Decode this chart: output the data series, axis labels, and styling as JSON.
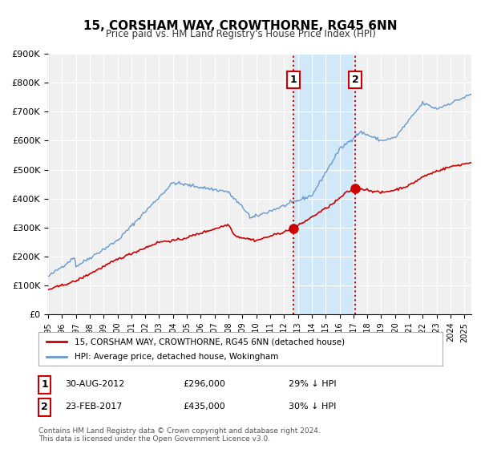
{
  "title": "15, CORSHAM WAY, CROWTHORNE, RG45 6NN",
  "subtitle": "Price paid vs. HM Land Registry's House Price Index (HPI)",
  "background_color": "#ffffff",
  "plot_bg_color": "#f0f0f0",
  "grid_color": "#ffffff",
  "x_start": 1995.0,
  "x_end": 2025.5,
  "y_min": 0,
  "y_max": 900000,
  "y_ticks": [
    0,
    100000,
    200000,
    300000,
    400000,
    500000,
    600000,
    700000,
    800000,
    900000
  ],
  "y_tick_labels": [
    "£0",
    "£100K",
    "£200K",
    "£300K",
    "£400K",
    "£500K",
    "£600K",
    "£700K",
    "£800K",
    "£900K"
  ],
  "sale1_date": 2012.667,
  "sale1_price": 296000,
  "sale1_label": "1",
  "sale2_date": 2017.13,
  "sale2_price": 435000,
  "sale2_label": "2",
  "shaded_region_color": "#d0e8f8",
  "vline_color": "#cc0000",
  "red_line_color": "#cc0000",
  "blue_line_color": "#6699cc",
  "legend_entry1": "15, CORSHAM WAY, CROWTHORNE, RG45 6NN (detached house)",
  "legend_entry2": "HPI: Average price, detached house, Wokingham",
  "annotation1_date": "30-AUG-2012",
  "annotation1_price": "£296,000",
  "annotation1_note": "29% ↓ HPI",
  "annotation2_date": "23-FEB-2017",
  "annotation2_price": "£435,000",
  "annotation2_note": "30% ↓ HPI",
  "footer1": "Contains HM Land Registry data © Crown copyright and database right 2024.",
  "footer2": "This data is licensed under the Open Government Licence v3.0.",
  "x_tick_years": [
    1995,
    1996,
    1997,
    1998,
    1999,
    2000,
    2001,
    2002,
    2003,
    2004,
    2005,
    2006,
    2007,
    2008,
    2009,
    2010,
    2011,
    2012,
    2013,
    2014,
    2015,
    2016,
    2017,
    2018,
    2019,
    2020,
    2021,
    2022,
    2023,
    2024,
    2025
  ]
}
